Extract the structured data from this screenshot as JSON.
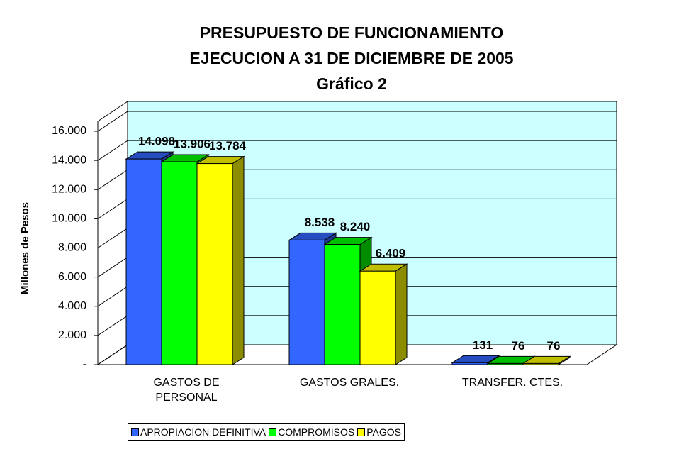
{
  "chart_data": {
    "type": "bar3d",
    "title": [
      "PRESUPUESTO DE FUNCIONAMIENTO",
      "EJECUCION A 31 DE DICIEMBRE DE 2005"
    ],
    "subtitle": "Gráfico  2",
    "y_label": "Millones de Pesos",
    "categories": [
      "GASTOS DE PERSONAL",
      "GASTOS GRALES.",
      "TRANSFER. CTES."
    ],
    "series": [
      {
        "name": "APROPIACION DEFINITIVA",
        "color": "#3366ff",
        "values": [
          14098,
          8538,
          131
        ],
        "value_labels": [
          "14.098",
          "8.538",
          "131"
        ]
      },
      {
        "name": "COMPROMISOS",
        "color": "#00ff00",
        "values": [
          13906,
          8240,
          76
        ],
        "value_labels": [
          "13.906",
          "8.240",
          "76"
        ]
      },
      {
        "name": "PAGOS",
        "color": "#ffff00",
        "values": [
          13784,
          6409,
          76
        ],
        "value_labels": [
          "13.784",
          "6.409",
          "76"
        ]
      }
    ],
    "ylim": [
      0,
      16000
    ],
    "yticks": [
      {
        "value": 0,
        "label": "-"
      },
      {
        "value": 2000,
        "label": "2.000"
      },
      {
        "value": 4000,
        "label": "4.000"
      },
      {
        "value": 6000,
        "label": "6.000"
      },
      {
        "value": 8000,
        "label": "8.000"
      },
      {
        "value": 10000,
        "label": "10.000"
      },
      {
        "value": 12000,
        "label": "12.000"
      },
      {
        "value": 14000,
        "label": "14.000"
      },
      {
        "value": 16000,
        "label": "16.000"
      }
    ],
    "grid": true,
    "wall_color": "#ccffff",
    "legend": "bottom"
  }
}
